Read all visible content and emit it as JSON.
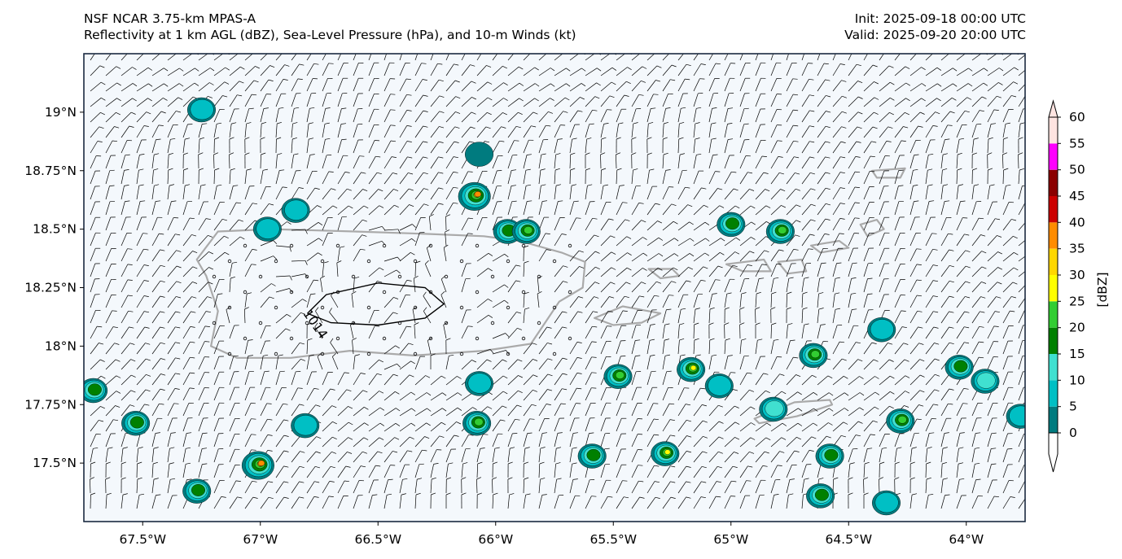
{
  "title": {
    "left_line1": "NSF NCAR 3.75-km MPAS-A",
    "left_line2": "Reflectivity at 1 km AGL (dBZ), Sea-Level Pressure (hPa), and 10-m Winds (kt)",
    "right_line1": "Init: 2025-09-18 00:00 UTC",
    "right_line2": "Valid: 2025-09-20 20:00 UTC"
  },
  "map": {
    "lon_range": [
      -67.75,
      -63.75
    ],
    "lat_range": [
      17.25,
      19.25
    ],
    "lon_ticks": [
      {
        "value": -67.5,
        "label": "67.5°W"
      },
      {
        "value": -67.0,
        "label": "67°W"
      },
      {
        "value": -66.5,
        "label": "66.5°W"
      },
      {
        "value": -66.0,
        "label": "66°W"
      },
      {
        "value": -65.5,
        "label": "65.5°W"
      },
      {
        "value": -65.0,
        "label": "65°W"
      },
      {
        "value": -64.5,
        "label": "64.5°W"
      },
      {
        "value": -64.0,
        "label": "64°W"
      }
    ],
    "lat_ticks": [
      {
        "value": 19.0,
        "label": "19°N"
      },
      {
        "value": 18.75,
        "label": "18.75°N"
      },
      {
        "value": 18.5,
        "label": "18.5°N"
      },
      {
        "value": 18.25,
        "label": "18.25°N"
      },
      {
        "value": 18.0,
        "label": "18°N"
      },
      {
        "value": 17.75,
        "label": "17.75°N"
      },
      {
        "value": 17.5,
        "label": "17.5°N"
      }
    ],
    "isobar_label": "1014",
    "colors": {
      "land": "#aaaaaa",
      "isobar": "#000000",
      "barb": "#000000"
    }
  },
  "colorbar": {
    "label": "[dBZ]",
    "ticks": [
      "0",
      "5",
      "10",
      "15",
      "20",
      "25",
      "30",
      "35",
      "40",
      "45",
      "50",
      "55",
      "60"
    ],
    "colors": [
      "#007b7f",
      "#00bfc4",
      "#40e0d0",
      "#008000",
      "#32cd32",
      "#ffff00",
      "#ffd700",
      "#ff8c00",
      "#cc0000",
      "#8b0000",
      "#ff00ff",
      "#ffe4e1"
    ]
  },
  "echoes": [
    {
      "lon": -66.85,
      "lat": 18.58,
      "dbz": 12
    },
    {
      "lon": -66.97,
      "lat": 18.5,
      "dbz": 10
    },
    {
      "lon": -67.25,
      "lat": 19.01,
      "dbz": 10
    },
    {
      "lon": -66.09,
      "lat": 18.64,
      "dbz": 42
    },
    {
      "lon": -66.07,
      "lat": 18.82,
      "dbz": 8
    },
    {
      "lon": -65.95,
      "lat": 18.49,
      "dbz": 20
    },
    {
      "lon": -65.87,
      "lat": 18.49,
      "dbz": 25
    },
    {
      "lon": -65.0,
      "lat": 18.52,
      "dbz": 20
    },
    {
      "lon": -64.79,
      "lat": 18.49,
      "dbz": 25
    },
    {
      "lon": -65.48,
      "lat": 17.87,
      "dbz": 25
    },
    {
      "lon": -65.17,
      "lat": 17.9,
      "dbz": 30
    },
    {
      "lon": -64.65,
      "lat": 17.96,
      "dbz": 25
    },
    {
      "lon": -64.82,
      "lat": 17.73,
      "dbz": 15
    },
    {
      "lon": -64.28,
      "lat": 17.68,
      "dbz": 25
    },
    {
      "lon": -64.03,
      "lat": 17.91,
      "dbz": 20
    },
    {
      "lon": -63.92,
      "lat": 17.85,
      "dbz": 15
    },
    {
      "lon": -66.08,
      "lat": 17.67,
      "dbz": 25
    },
    {
      "lon": -66.07,
      "lat": 17.84,
      "dbz": 10
    },
    {
      "lon": -65.59,
      "lat": 17.53,
      "dbz": 20
    },
    {
      "lon": -65.28,
      "lat": 17.54,
      "dbz": 30
    },
    {
      "lon": -65.05,
      "lat": 17.83,
      "dbz": 10
    },
    {
      "lon": -66.81,
      "lat": 17.66,
      "dbz": 10
    },
    {
      "lon": -67.01,
      "lat": 17.49,
      "dbz": 42
    },
    {
      "lon": -67.27,
      "lat": 17.38,
      "dbz": 20
    },
    {
      "lon": -67.53,
      "lat": 17.67,
      "dbz": 20
    },
    {
      "lon": -67.71,
      "lat": 17.81,
      "dbz": 20
    },
    {
      "lon": -64.58,
      "lat": 17.53,
      "dbz": 20
    },
    {
      "lon": -64.62,
      "lat": 17.36,
      "dbz": 20
    },
    {
      "lon": -64.34,
      "lat": 17.33,
      "dbz": 10
    },
    {
      "lon": -63.77,
      "lat": 17.7,
      "dbz": 10
    },
    {
      "lon": -64.36,
      "lat": 18.07,
      "dbz": 10
    }
  ],
  "land": {
    "puerto_rico": [
      [
        -67.27,
        18.37
      ],
      [
        -67.18,
        18.49
      ],
      [
        -66.95,
        18.5
      ],
      [
        -66.6,
        18.49
      ],
      [
        -66.3,
        18.48
      ],
      [
        -66.05,
        18.47
      ],
      [
        -65.9,
        18.45
      ],
      [
        -65.72,
        18.4
      ],
      [
        -65.62,
        18.36
      ],
      [
        -65.63,
        18.25
      ],
      [
        -65.73,
        18.19
      ],
      [
        -65.85,
        18.01
      ],
      [
        -66.05,
        17.98
      ],
      [
        -66.35,
        17.96
      ],
      [
        -66.62,
        17.98
      ],
      [
        -66.87,
        17.95
      ],
      [
        -67.1,
        17.95
      ],
      [
        -67.21,
        18.0
      ],
      [
        -67.18,
        18.15
      ],
      [
        -67.23,
        18.3
      ]
    ],
    "vieques": [
      [
        -65.58,
        18.12
      ],
      [
        -65.46,
        18.17
      ],
      [
        -65.3,
        18.14
      ],
      [
        -65.38,
        18.1
      ],
      [
        -65.5,
        18.09
      ]
    ],
    "culebra": [
      [
        -65.35,
        18.33
      ],
      [
        -65.25,
        18.33
      ],
      [
        -65.22,
        18.3
      ],
      [
        -65.3,
        18.29
      ]
    ],
    "st_thomas": [
      [
        -65.02,
        18.35
      ],
      [
        -64.86,
        18.37
      ],
      [
        -64.83,
        18.32
      ],
      [
        -64.95,
        18.32
      ]
    ],
    "st_john": [
      [
        -64.8,
        18.36
      ],
      [
        -64.7,
        18.37
      ],
      [
        -64.68,
        18.32
      ],
      [
        -64.76,
        18.31
      ]
    ],
    "tortola": [
      [
        -64.66,
        18.43
      ],
      [
        -64.54,
        18.45
      ],
      [
        -64.5,
        18.42
      ],
      [
        -64.62,
        18.4
      ]
    ],
    "virgin_gorda": [
      [
        -64.45,
        18.52
      ],
      [
        -64.38,
        18.54
      ],
      [
        -64.35,
        18.5
      ],
      [
        -64.42,
        18.47
      ]
    ],
    "anegada": [
      [
        -64.4,
        18.75
      ],
      [
        -64.26,
        18.76
      ],
      [
        -64.28,
        18.72
      ],
      [
        -64.38,
        18.72
      ]
    ],
    "st_croix": [
      [
        -64.9,
        17.69
      ],
      [
        -64.73,
        17.76
      ],
      [
        -64.58,
        17.77
      ],
      [
        -64.57,
        17.75
      ],
      [
        -64.72,
        17.7
      ],
      [
        -64.88,
        17.67
      ]
    ]
  },
  "isobar_1014": [
    [
      -66.8,
      18.14
    ],
    [
      -66.72,
      18.22
    ],
    [
      -66.5,
      18.27
    ],
    [
      -66.3,
      18.25
    ],
    [
      -66.22,
      18.18
    ],
    [
      -66.3,
      18.12
    ],
    [
      -66.5,
      18.09
    ],
    [
      -66.7,
      18.1
    ],
    [
      -66.8,
      18.14
    ]
  ]
}
